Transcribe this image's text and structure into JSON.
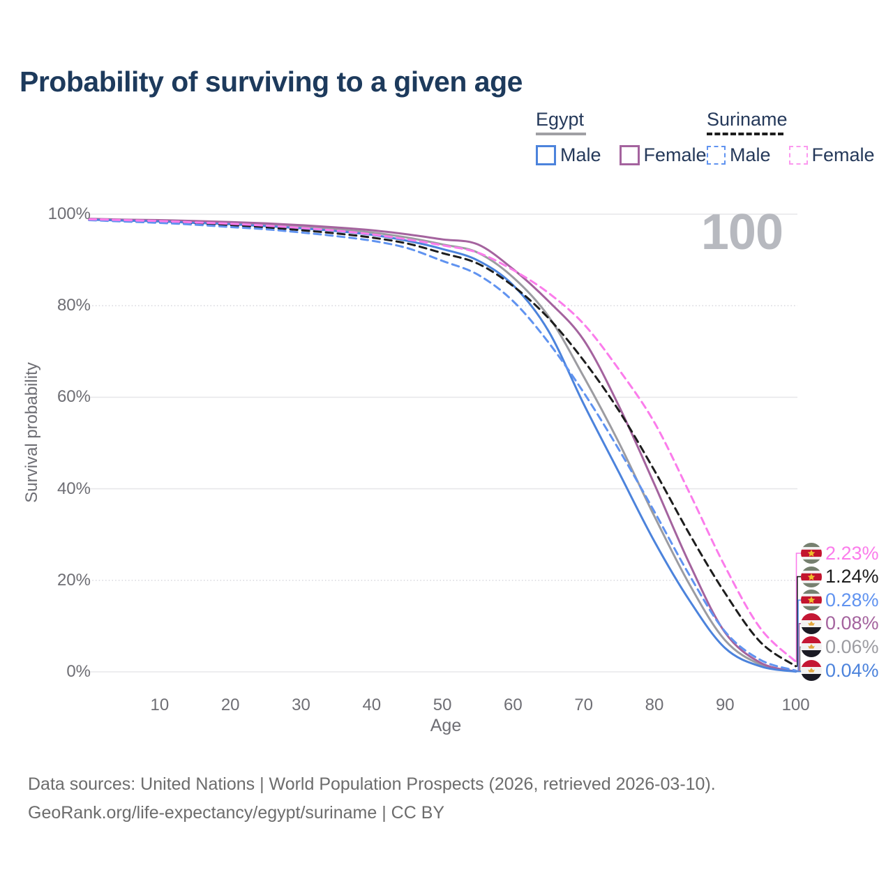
{
  "title": "Probability of surviving to a given age",
  "watermark": "100",
  "legend": {
    "groups": [
      {
        "label": "Egypt",
        "line_style": "solid",
        "line_color": "#a0a0a4",
        "items": [
          {
            "label": "Male",
            "color": "#4c83dc"
          },
          {
            "label": "Female",
            "color": "#a4639e"
          }
        ]
      },
      {
        "label": "Suriname",
        "line_style": "dashed",
        "line_color": "#1d1d1d",
        "items": [
          {
            "label": "Male",
            "color": "#6093f0"
          },
          {
            "label": "Female",
            "color": "#fb99ef"
          }
        ]
      }
    ]
  },
  "chart_data": {
    "type": "line",
    "title": "Probability of surviving to a given age",
    "xlabel": "Age",
    "ylabel": "Survival probability",
    "xlim": [
      0,
      100
    ],
    "ylim": [
      0,
      100
    ],
    "grid": "horizontal-only",
    "legend_position": "top-right",
    "x": [
      0,
      5,
      10,
      15,
      20,
      25,
      30,
      35,
      40,
      45,
      50,
      55,
      60,
      65,
      70,
      75,
      80,
      85,
      90,
      95,
      100
    ],
    "x_ticks": [
      {
        "label": "10",
        "value": 10
      },
      {
        "label": "20",
        "value": 20
      },
      {
        "label": "30",
        "value": 30
      },
      {
        "label": "40",
        "value": 40
      },
      {
        "label": "50",
        "value": 50
      },
      {
        "label": "60",
        "value": 60
      },
      {
        "label": "70",
        "value": 70
      },
      {
        "label": "80",
        "value": 80
      },
      {
        "label": "90",
        "value": 90
      },
      {
        "label": "100",
        "value": 100
      }
    ],
    "y_ticks": [
      {
        "label": "0%",
        "value": 0,
        "dotted": false
      },
      {
        "label": "20%",
        "value": 20,
        "dotted": true
      },
      {
        "label": "40%",
        "value": 40,
        "dotted": false
      },
      {
        "label": "60%",
        "value": 60,
        "dotted": false
      },
      {
        "label": "80%",
        "value": 80,
        "dotted": true
      },
      {
        "label": "100%",
        "value": 100,
        "dotted": false
      }
    ],
    "series": [
      {
        "id": "egypt-total",
        "name": "Egypt",
        "color": "#9c9ca1",
        "dashed": false,
        "values": [
          98.9,
          98.7,
          98.5,
          98.3,
          98.0,
          97.7,
          97.2,
          96.7,
          96.0,
          94.9,
          93.4,
          91.6,
          86.2,
          77.7,
          64.5,
          50.0,
          34.0,
          19.0,
          6.9,
          1.6,
          0.06
        ]
      },
      {
        "id": "egypt-female",
        "name": "Egypt Female",
        "color": "#a4639e",
        "dashed": false,
        "values": [
          99.0,
          98.8,
          98.7,
          98.5,
          98.3,
          98.0,
          97.6,
          97.1,
          96.5,
          95.6,
          94.5,
          93.4,
          88.0,
          81.0,
          72.5,
          58.0,
          41.0,
          23.5,
          8.6,
          2.0,
          0.08
        ]
      },
      {
        "id": "egypt-male",
        "name": "Egypt Male",
        "color": "#4c83dc",
        "dashed": false,
        "values": [
          98.8,
          98.6,
          98.4,
          98.1,
          97.8,
          97.4,
          96.9,
          96.3,
          95.5,
          94.2,
          92.4,
          89.9,
          84.5,
          74.5,
          58.5,
          43.5,
          28.5,
          15.5,
          5.2,
          1.2,
          0.04
        ]
      },
      {
        "id": "suriname-total",
        "name": "Suriname",
        "color": "#1d1d1d",
        "dashed": true,
        "values": [
          98.8,
          98.6,
          98.3,
          98.0,
          97.6,
          97.1,
          96.5,
          95.8,
          94.9,
          93.6,
          91.5,
          89.2,
          84.3,
          77.3,
          68.0,
          57.0,
          44.0,
          30.0,
          17.2,
          6.5,
          1.24
        ]
      },
      {
        "id": "suriname-male",
        "name": "Suriname Male",
        "color": "#6093f0",
        "dashed": true,
        "values": [
          98.7,
          98.4,
          98.1,
          97.7,
          97.2,
          96.7,
          96.0,
          95.2,
          94.2,
          92.6,
          89.8,
          86.8,
          81.0,
          72.0,
          61.0,
          48.5,
          35.0,
          21.0,
          8.8,
          2.6,
          0.28
        ]
      },
      {
        "id": "suriname-female",
        "name": "Suriname Female",
        "color": "#fb7ceb",
        "dashed": true,
        "values": [
          98.9,
          98.7,
          98.5,
          98.2,
          97.9,
          97.5,
          97.0,
          96.4,
          95.6,
          94.5,
          93.2,
          91.6,
          87.8,
          82.8,
          76.0,
          66.0,
          54.5,
          39.0,
          23.0,
          9.5,
          2.23
        ]
      }
    ]
  },
  "end_labels": [
    {
      "value": "2.23%",
      "series": "suriname-female",
      "flag": "suriname"
    },
    {
      "value": "1.24%",
      "series": "suriname-total",
      "flag": "suriname"
    },
    {
      "value": "0.28%",
      "series": "suriname-male",
      "flag": "suriname"
    },
    {
      "value": "0.08%",
      "series": "egypt-female",
      "flag": "egypt"
    },
    {
      "value": "0.06%",
      "series": "egypt-total",
      "flag": "egypt"
    },
    {
      "value": "0.04%",
      "series": "egypt-male",
      "flag": "egypt"
    }
  ],
  "footer": {
    "line1": "Data sources: United Nations | World Population Prospects (2026, retrieved 2026-03-10).",
    "line2": "GeoRank.org/life-expectancy/egypt/suriname | CC BY"
  }
}
